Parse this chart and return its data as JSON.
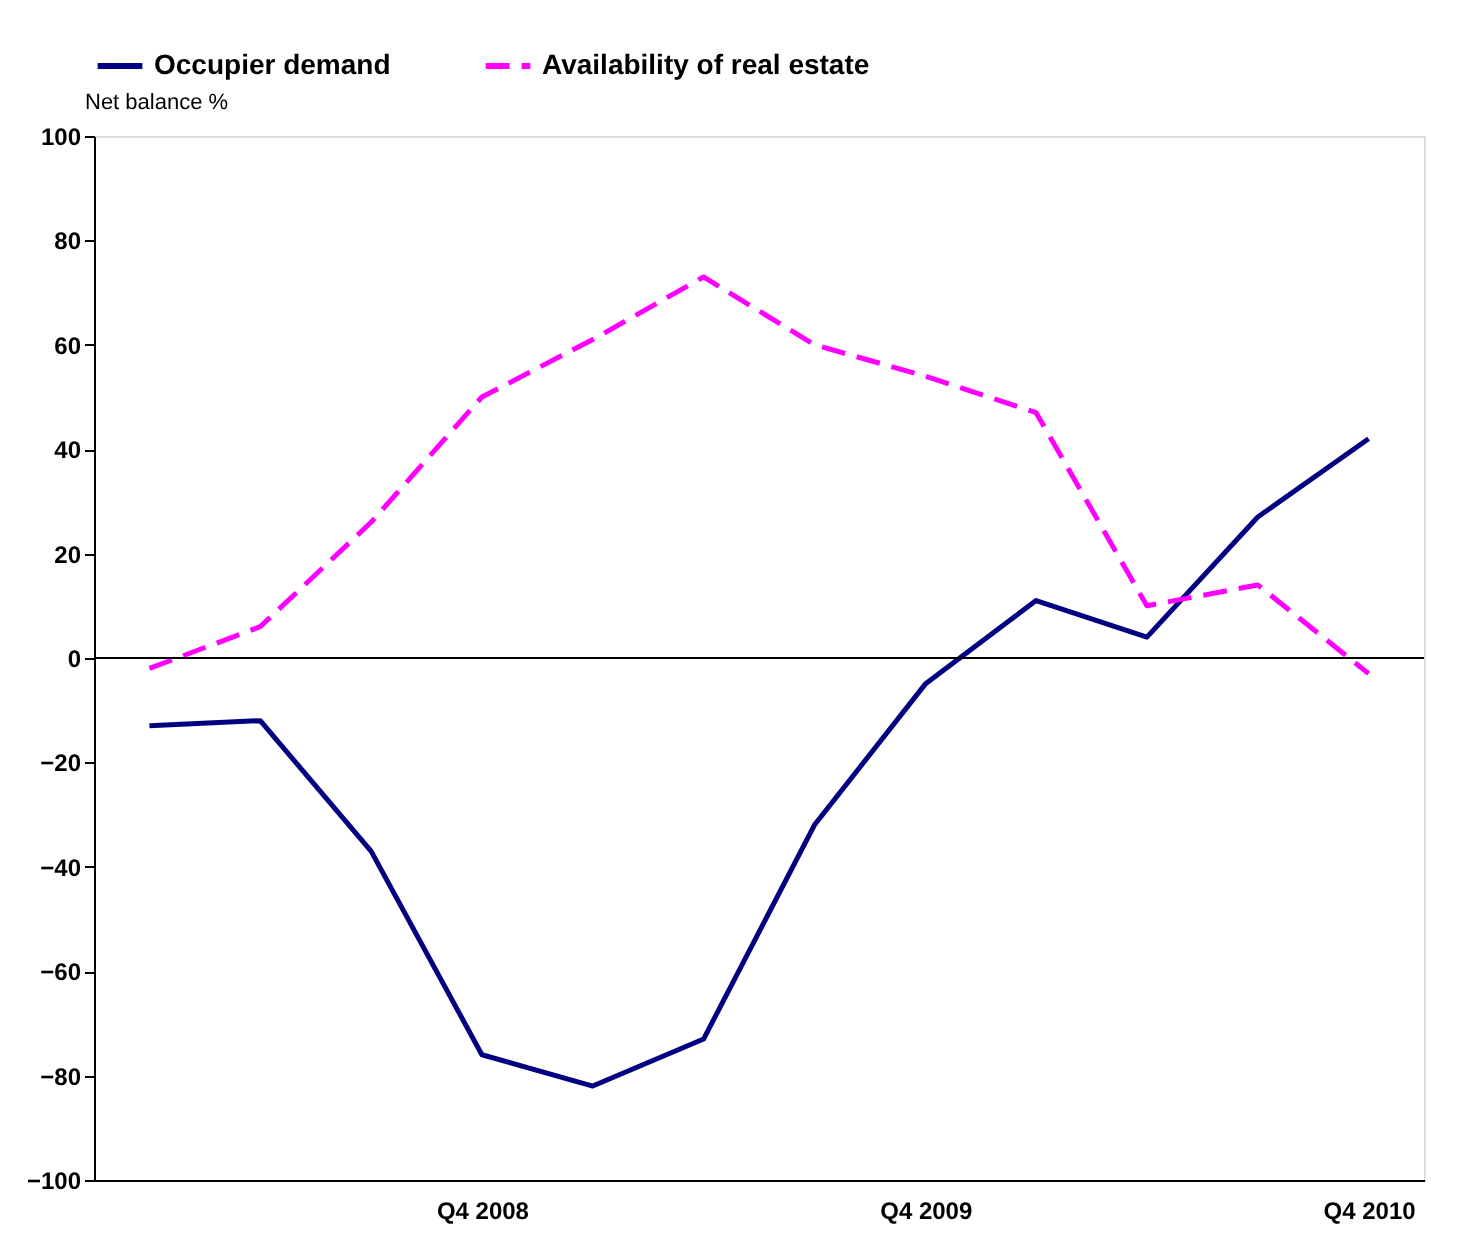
{
  "chart_data": {
    "type": "line",
    "ylabel": "Net balance %",
    "categories": [
      null,
      null,
      null,
      "Q4 2008",
      null,
      null,
      null,
      "Q4 2009",
      null,
      null,
      null,
      "Q4 2010"
    ],
    "series": [
      {
        "name": "Occupier demand",
        "color": "#000080",
        "line_style": "solid",
        "values": [
          -13,
          -12,
          -37,
          -76,
          -82,
          -73,
          -32,
          -5,
          11,
          4,
          27,
          42
        ]
      },
      {
        "name": "Availability of real estate",
        "color": "#ff00ff",
        "line_style": "dashed",
        "values": [
          -2,
          6,
          26,
          50,
          61,
          73,
          60,
          54,
          47,
          10,
          14,
          -3
        ]
      }
    ],
    "ylim": [
      -100,
      100
    ],
    "yticks": [
      -100,
      -80,
      -60,
      -40,
      -20,
      0,
      20,
      40,
      60,
      80,
      100
    ],
    "ref_lines": [
      {
        "axis": "y",
        "value": 0,
        "color": "#000000"
      }
    ],
    "grid": false,
    "legend": "top",
    "marker": "none"
  }
}
